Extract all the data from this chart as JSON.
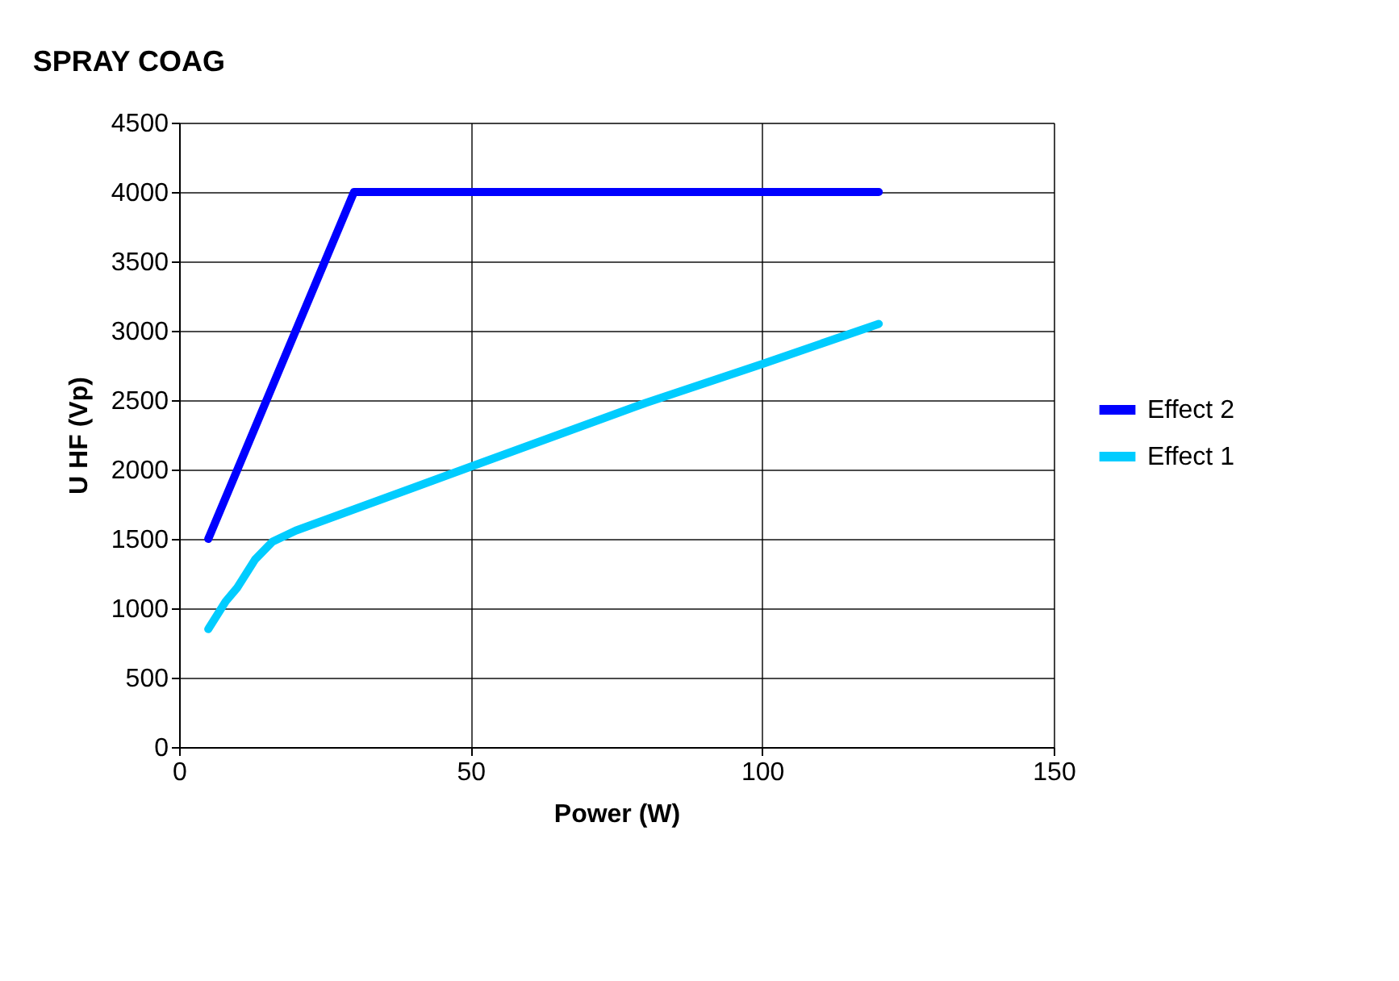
{
  "chart_data": {
    "type": "line",
    "title": "SPRAY COAG",
    "xlabel": "Power (W)",
    "ylabel": "U HF (Vp)",
    "series": [
      {
        "name": "Effect 2",
        "color": "#0000ff",
        "x": [
          5,
          30,
          120
        ],
        "values": [
          1500,
          4000,
          4000
        ]
      },
      {
        "name": "Effect 1",
        "color": "#00ccff",
        "x": [
          5,
          8,
          10,
          13,
          16,
          20,
          50,
          80,
          100,
          120
        ],
        "values": [
          850,
          1050,
          1150,
          1350,
          1480,
          1560,
          2020,
          2480,
          2760,
          3050
        ]
      }
    ],
    "xlim": [
      0,
      150
    ],
    "xticks": [
      0,
      50,
      100,
      150
    ],
    "ylim": [
      0,
      4500
    ],
    "yticks": [
      0,
      500,
      1000,
      1500,
      2000,
      2500,
      3000,
      3500,
      4000,
      4500
    ],
    "grid": true,
    "legend": "right",
    "marker": "none",
    "line_style": "solid"
  }
}
